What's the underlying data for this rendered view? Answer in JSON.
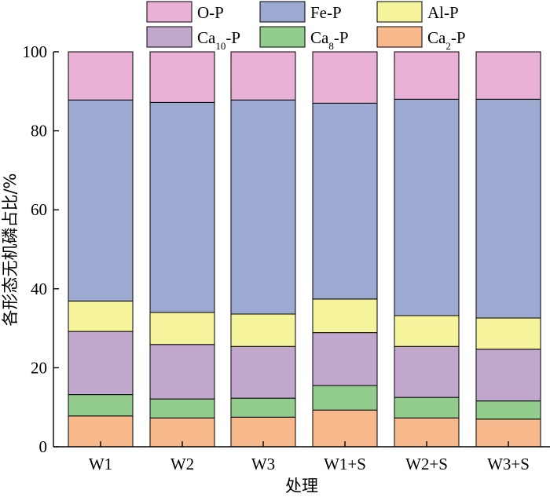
{
  "chart_data": {
    "type": "bar",
    "stacked": true,
    "title": "",
    "xlabel": "处理",
    "ylabel": "各形态无机磷占比/%",
    "ylim": [
      0,
      100
    ],
    "yticks": [
      0,
      20,
      40,
      60,
      80,
      100
    ],
    "grid": false,
    "legend_position": "top",
    "categories": [
      "W1",
      "W2",
      "W3",
      "W1+S",
      "W2+S",
      "W3+S"
    ],
    "series": [
      {
        "name": "Ca2-P",
        "label_base": "Ca",
        "label_sub": "2",
        "label_suffix": "-P",
        "color": "#F8B98C",
        "values": [
          7.8,
          7.3,
          7.5,
          9.3,
          7.3,
          7.0
        ]
      },
      {
        "name": "Ca8-P",
        "label_base": "Ca",
        "label_sub": "8",
        "label_suffix": "-P",
        "color": "#92CD8E",
        "values": [
          5.4,
          4.8,
          4.8,
          6.2,
          5.2,
          4.6
        ]
      },
      {
        "name": "Ca10-P",
        "label_base": "Ca",
        "label_sub": "10",
        "label_suffix": "-P",
        "color": "#C2A7CD",
        "values": [
          16.0,
          13.8,
          13.1,
          13.4,
          12.9,
          13.1
        ]
      },
      {
        "name": "Al-P",
        "label_base": "Al-P",
        "label_sub": "",
        "label_suffix": "",
        "color": "#F5F39B",
        "values": [
          7.7,
          8.1,
          8.2,
          8.5,
          7.8,
          7.9
        ]
      },
      {
        "name": "Fe-P",
        "label_base": "Fe-P",
        "label_sub": "",
        "label_suffix": "",
        "color": "#9CAAD2",
        "values": [
          50.9,
          53.2,
          54.2,
          49.6,
          54.8,
          55.4
        ]
      },
      {
        "name": "O-P",
        "label_base": "O-P",
        "label_sub": "",
        "label_suffix": "",
        "color": "#E8B1D5",
        "values": [
          12.2,
          12.8,
          12.2,
          13.0,
          12.0,
          12.0
        ]
      }
    ],
    "legend_order": [
      "O-P",
      "Fe-P",
      "Al-P",
      "Ca10-P",
      "Ca8-P",
      "Ca2-P"
    ]
  }
}
